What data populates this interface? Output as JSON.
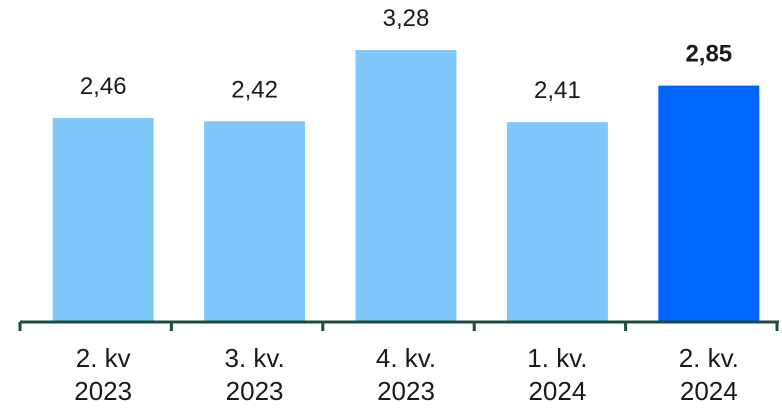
{
  "chart_data": {
    "type": "bar",
    "categories": [
      [
        "2. kv",
        "2023"
      ],
      [
        "3. kv.",
        "2023"
      ],
      [
        "4. kv.",
        "2023"
      ],
      [
        "1. kv.",
        "2024"
      ],
      [
        "2. kv.",
        "2024"
      ]
    ],
    "values": [
      2.46,
      2.42,
      3.28,
      2.41,
      2.85
    ],
    "value_labels": [
      "2,46",
      "2,42",
      "3,28",
      "2,41",
      "2,85"
    ],
    "highlight_index": 4,
    "colors": {
      "bar": "#80c8fa",
      "highlight": "#0066ff",
      "axis": "#1f4a3f"
    },
    "ylim": [
      0,
      3.4
    ],
    "grid": false,
    "legend": "none",
    "title": "",
    "xlabel": "",
    "ylabel": ""
  }
}
